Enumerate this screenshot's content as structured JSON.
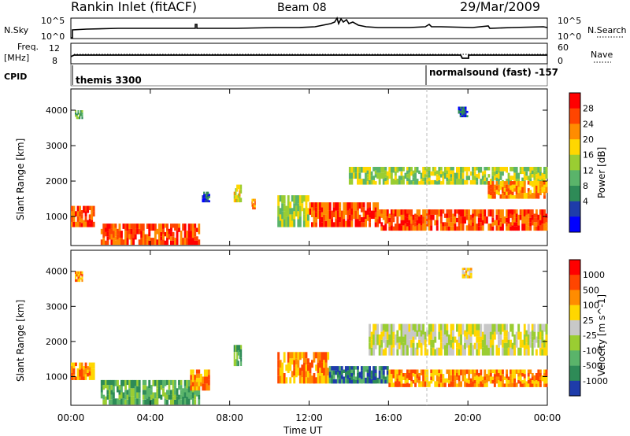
{
  "header": {
    "title": "Rankin Inlet (fitACF)",
    "beam": "Beam 08",
    "date": "29/Mar/2009"
  },
  "top_panels": {
    "nsky": {
      "left_label": "N.Sky",
      "left_ticks": [
        "10^5",
        "10^0"
      ],
      "right_label": "N.Search",
      "right_ticks": [
        "10^5",
        "10^0"
      ]
    },
    "freq": {
      "left_label_1": "Freq.",
      "left_label_2": "[MHz]",
      "left_ticks": [
        "12",
        "8"
      ],
      "right_label": "Nave",
      "right_ticks": [
        "60",
        "0"
      ]
    },
    "cpid": {
      "label": "CPID",
      "segments": [
        {
          "name": "themis 3300",
          "start_hour": 0,
          "end_hour": 18.1
        },
        {
          "name": "normalsound (fast) -157",
          "start_hour": 18.1,
          "end_hour": 24
        }
      ]
    }
  },
  "colors": {
    "power_scale": [
      "#0000ff",
      "#1e3caa",
      "#2e8b57",
      "#5ab46a",
      "#9acd32",
      "#ffd700",
      "#ff8c00",
      "#ff4500",
      "#ff0000"
    ],
    "velocity_scale": [
      "#1e3caa",
      "#2e8b57",
      "#5ab46a",
      "#9acd32",
      "#c8c8c8",
      "#ffd700",
      "#ff8c00",
      "#ff4500",
      "#ff0000"
    ]
  },
  "chart_data": [
    {
      "type": "heatmap",
      "title": "",
      "xlabel": "Time UT",
      "ylabel": "Slant Range [km]",
      "x_ticks": [
        "00:00",
        "04:00",
        "08:00",
        "12:00",
        "16:00",
        "20:00",
        "00:00"
      ],
      "xlim_hours": [
        0,
        24
      ],
      "y_ticks": [
        1000,
        2000,
        3000,
        4000
      ],
      "ylim": [
        180,
        4600
      ],
      "colorbar": {
        "label": "Power [dB]",
        "ticks": [
          4,
          8,
          12,
          16,
          20,
          24,
          28
        ]
      },
      "bands": [
        {
          "t0": 0.0,
          "t1": 1.2,
          "r0": 700,
          "r1": 1300,
          "level": 7
        },
        {
          "t0": 0.2,
          "t1": 0.6,
          "r0": 3750,
          "r1": 4000,
          "level": 3
        },
        {
          "t0": 1.5,
          "t1": 6.5,
          "r0": 200,
          "r1": 800,
          "level": 7
        },
        {
          "t0": 6.6,
          "t1": 7.0,
          "r0": 1400,
          "r1": 1700,
          "level": 1
        },
        {
          "t0": 8.2,
          "t1": 8.6,
          "r0": 1400,
          "r1": 1900,
          "level": 5
        },
        {
          "t0": 9.1,
          "t1": 9.3,
          "r0": 1200,
          "r1": 1500,
          "level": 6
        },
        {
          "t0": 10.4,
          "t1": 12.0,
          "r0": 700,
          "r1": 1600,
          "level": 4
        },
        {
          "t0": 12.0,
          "t1": 15.5,
          "r0": 700,
          "r1": 1400,
          "level": 7
        },
        {
          "t0": 14.0,
          "t1": 24.0,
          "r0": 1900,
          "r1": 2400,
          "level": 4
        },
        {
          "t0": 15.5,
          "t1": 24.0,
          "r0": 600,
          "r1": 1200,
          "level": 7
        },
        {
          "t0": 21.0,
          "t1": 24.0,
          "r0": 1500,
          "r1": 2000,
          "level": 6
        },
        {
          "t0": 19.5,
          "t1": 20.0,
          "r0": 3800,
          "r1": 4100,
          "level": 1
        }
      ]
    },
    {
      "type": "heatmap",
      "title": "",
      "xlabel": "Time UT",
      "ylabel": "Slant Range [km]",
      "x_ticks": [
        "00:00",
        "04:00",
        "08:00",
        "12:00",
        "16:00",
        "20:00",
        "00:00"
      ],
      "xlim_hours": [
        0,
        24
      ],
      "y_ticks": [
        1000,
        2000,
        3000,
        4000
      ],
      "ylim": [
        180,
        4600
      ],
      "colorbar": {
        "label": "Velocity [m s^-1]",
        "ticks": [
          "1000",
          "500",
          "100",
          "25",
          "-25",
          "-100",
          "-500",
          "-1000"
        ]
      },
      "bands": [
        {
          "t0": 0.0,
          "t1": 1.2,
          "r0": 900,
          "r1": 1400,
          "level": 6
        },
        {
          "t0": 0.2,
          "t1": 0.6,
          "r0": 3700,
          "r1": 4000,
          "level": 6
        },
        {
          "t0": 1.5,
          "t1": 6.5,
          "r0": 200,
          "r1": 900,
          "level": 2
        },
        {
          "t0": 6.0,
          "t1": 7.0,
          "r0": 600,
          "r1": 1200,
          "level": 6
        },
        {
          "t0": 8.2,
          "t1": 8.6,
          "r0": 1300,
          "r1": 1900,
          "level": 2
        },
        {
          "t0": 10.4,
          "t1": 13.0,
          "r0": 800,
          "r1": 1700,
          "level": 6
        },
        {
          "t0": 13.0,
          "t1": 16.0,
          "r0": 800,
          "r1": 1300,
          "level": 1
        },
        {
          "t0": 15.0,
          "t1": 24.0,
          "r0": 1600,
          "r1": 2500,
          "level": 4
        },
        {
          "t0": 16.0,
          "t1": 24.0,
          "r0": 700,
          "r1": 1200,
          "level": 6
        },
        {
          "t0": 19.7,
          "t1": 20.2,
          "r0": 3800,
          "r1": 4100,
          "level": 5
        }
      ]
    }
  ]
}
